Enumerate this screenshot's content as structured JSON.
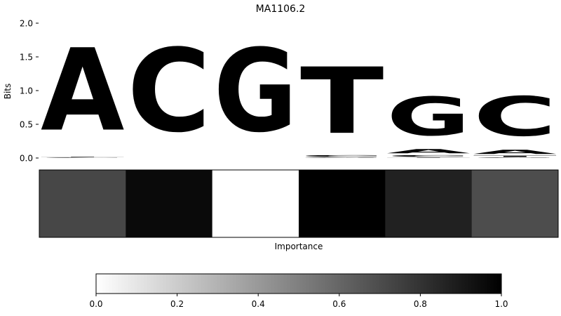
{
  "chart_data": [
    {
      "type": "sequence-logo",
      "title": "MA1106.2",
      "ylabel": "Bits",
      "ylim": [
        0,
        2.0
      ],
      "yticks": [
        "0.0",
        "0.5",
        "1.0",
        "1.5",
        "2.0"
      ],
      "colors": {
        "A": "#4eaa4e",
        "C": "#4b4bfa",
        "G": "#ffbf4b",
        "T": "#fa4b4b"
      },
      "positions": [
        [
          {
            "base": "C",
            "bits": 0.01
          },
          {
            "base": "T",
            "bits": 0.01
          },
          {
            "base": "A",
            "bits": 1.96
          }
        ],
        [
          {
            "base": "C",
            "bits": 1.98
          }
        ],
        [
          {
            "base": "G",
            "bits": 1.98
          }
        ],
        [
          {
            "base": "G",
            "bits": 0.01
          },
          {
            "base": "C",
            "bits": 0.04
          },
          {
            "base": "T",
            "bits": 1.58
          }
        ],
        [
          {
            "base": "T",
            "bits": 0.01
          },
          {
            "base": "C",
            "bits": 0.04
          },
          {
            "base": "A",
            "bits": 0.1
          },
          {
            "base": "G",
            "bits": 0.92
          }
        ],
        [
          {
            "base": "G",
            "bits": 0.01
          },
          {
            "base": "T",
            "bits": 0.03
          },
          {
            "base": "A",
            "bits": 0.1
          },
          {
            "base": "C",
            "bits": 0.94
          }
        ]
      ]
    },
    {
      "type": "heatmap",
      "xlabel": "Importance",
      "values": [
        0.72,
        0.96,
        0.0,
        1.0,
        0.87,
        0.7
      ]
    },
    {
      "type": "colorbar",
      "range": [
        0,
        1
      ],
      "ticks": [
        "0.0",
        "0.2",
        "0.4",
        "0.6",
        "0.8",
        "1.0"
      ]
    }
  ]
}
